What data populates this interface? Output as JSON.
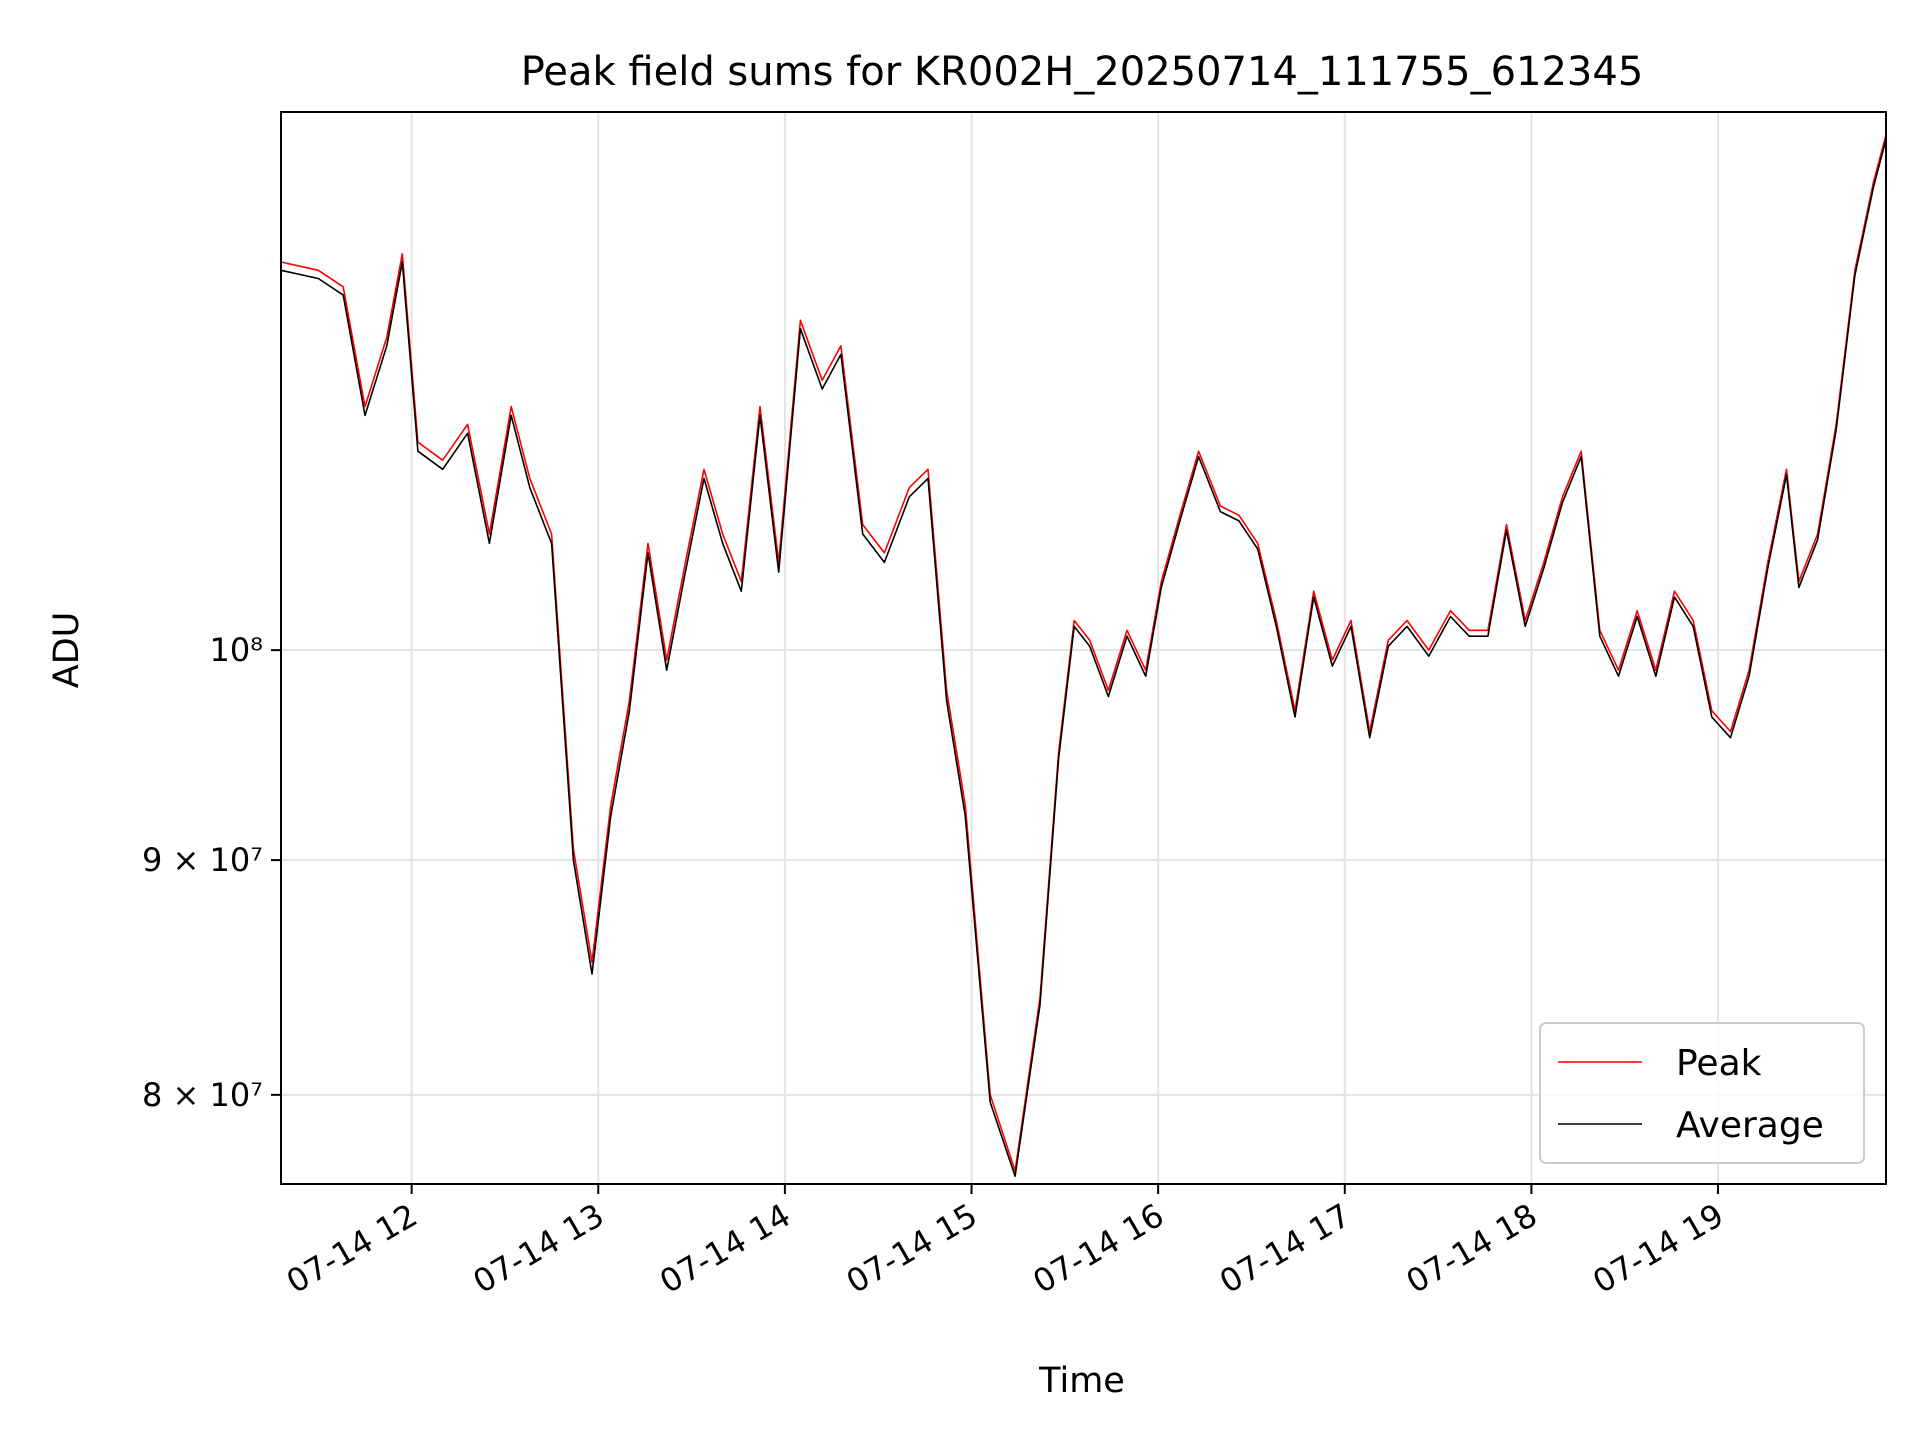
{
  "chart_data": {
    "type": "line",
    "title": "Peak field sums for KR002H_20250714_111755_612345",
    "xlabel": "Time",
    "ylabel": "ADU",
    "xlim": [
      "2025-07-14T11:18:00",
      "2025-07-14T19:54:00"
    ],
    "ylim": [
      76500000,
      131000000
    ],
    "yscale": "log",
    "x_ticks": [
      "07-14 12",
      "07-14 13",
      "07-14 14",
      "07-14 15",
      "07-14 16",
      "07-14 17",
      "07-14 18",
      "07-14 19"
    ],
    "y_ticks": [
      {
        "value": 80000000,
        "label": "8 × 10⁷"
      },
      {
        "value": 90000000,
        "label": "9 × 10⁷"
      },
      {
        "value": 100000000,
        "label": "10⁸"
      }
    ],
    "grid": true,
    "legend_position": "lower-right",
    "series": [
      {
        "name": "Peak",
        "color": "#ff0000",
        "points": [
          [
            "2025-07-14T11:18:00",
            121500000
          ],
          [
            "2025-07-14T11:30:00",
            121000000
          ],
          [
            "2025-07-14T11:38:00",
            120000000
          ],
          [
            "2025-07-14T11:45:00",
            113000000
          ],
          [
            "2025-07-14T11:52:00",
            117000000
          ],
          [
            "2025-07-14T11:57:00",
            122000000
          ],
          [
            "2025-07-14T12:02:00",
            111000000
          ],
          [
            "2025-07-14T12:10:00",
            110000000
          ],
          [
            "2025-07-14T12:18:00",
            112000000
          ],
          [
            "2025-07-14T12:25:00",
            106000000
          ],
          [
            "2025-07-14T12:32:00",
            113000000
          ],
          [
            "2025-07-14T12:38:00",
            109000000
          ],
          [
            "2025-07-14T12:45:00",
            106000000
          ],
          [
            "2025-07-14T12:52:00",
            90500000
          ],
          [
            "2025-07-14T12:58:00",
            85500000
          ],
          [
            "2025-07-14T13:04:00",
            92500000
          ],
          [
            "2025-07-14T13:10:00",
            97500000
          ],
          [
            "2025-07-14T13:16:00",
            105500000
          ],
          [
            "2025-07-14T13:22:00",
            99500000
          ],
          [
            "2025-07-14T13:28:00",
            104500000
          ],
          [
            "2025-07-14T13:34:00",
            109500000
          ],
          [
            "2025-07-14T13:40:00",
            106000000
          ],
          [
            "2025-07-14T13:46:00",
            103500000
          ],
          [
            "2025-07-14T13:52:00",
            113000000
          ],
          [
            "2025-07-14T13:58:00",
            104500000
          ],
          [
            "2025-07-14T14:05:00",
            118000000
          ],
          [
            "2025-07-14T14:12:00",
            114500000
          ],
          [
            "2025-07-14T14:18:00",
            116500000
          ],
          [
            "2025-07-14T14:25:00",
            106500000
          ],
          [
            "2025-07-14T14:32:00",
            105000000
          ],
          [
            "2025-07-14T14:40:00",
            108500000
          ],
          [
            "2025-07-14T14:46:00",
            109500000
          ],
          [
            "2025-07-14T14:52:00",
            98000000
          ],
          [
            "2025-07-14T14:58:00",
            92500000
          ],
          [
            "2025-07-14T15:06:00",
            80000000
          ],
          [
            "2025-07-14T15:14:00",
            77000000
          ],
          [
            "2025-07-14T15:22:00",
            84000000
          ],
          [
            "2025-07-14T15:28:00",
            95000000
          ],
          [
            "2025-07-14T15:33:00",
            101500000
          ],
          [
            "2025-07-14T15:38:00",
            100500000
          ],
          [
            "2025-07-14T15:44:00",
            98000000
          ],
          [
            "2025-07-14T15:50:00",
            101000000
          ],
          [
            "2025-07-14T15:56:00",
            99000000
          ],
          [
            "2025-07-14T16:01:00",
            103500000
          ],
          [
            "2025-07-14T16:07:00",
            107000000
          ],
          [
            "2025-07-14T16:13:00",
            110500000
          ],
          [
            "2025-07-14T16:20:00",
            107500000
          ],
          [
            "2025-07-14T16:26:00",
            107000000
          ],
          [
            "2025-07-14T16:32:00",
            105500000
          ],
          [
            "2025-07-14T16:38:00",
            101500000
          ],
          [
            "2025-07-14T16:44:00",
            97000000
          ],
          [
            "2025-07-14T16:50:00",
            103000000
          ],
          [
            "2025-07-14T16:56:00",
            99500000
          ],
          [
            "2025-07-14T17:02:00",
            101500000
          ],
          [
            "2025-07-14T17:08:00",
            96000000
          ],
          [
            "2025-07-14T17:14:00",
            100500000
          ],
          [
            "2025-07-14T17:20:00",
            101500000
          ],
          [
            "2025-07-14T17:27:00",
            100000000
          ],
          [
            "2025-07-14T17:34:00",
            102000000
          ],
          [
            "2025-07-14T17:40:00",
            101000000
          ],
          [
            "2025-07-14T17:46:00",
            101000000
          ],
          [
            "2025-07-14T17:52:00",
            106500000
          ],
          [
            "2025-07-14T17:58:00",
            101500000
          ],
          [
            "2025-07-14T18:04:00",
            104500000
          ],
          [
            "2025-07-14T18:10:00",
            108000000
          ],
          [
            "2025-07-14T18:16:00",
            110500000
          ],
          [
            "2025-07-14T18:22:00",
            101000000
          ],
          [
            "2025-07-14T18:28:00",
            99000000
          ],
          [
            "2025-07-14T18:34:00",
            102000000
          ],
          [
            "2025-07-14T18:40:00",
            99000000
          ],
          [
            "2025-07-14T18:46:00",
            103000000
          ],
          [
            "2025-07-14T18:52:00",
            101500000
          ],
          [
            "2025-07-14T18:58:00",
            97000000
          ],
          [
            "2025-07-14T19:04:00",
            96000000
          ],
          [
            "2025-07-14T19:10:00",
            99000000
          ],
          [
            "2025-07-14T19:16:00",
            104500000
          ],
          [
            "2025-07-14T19:22:00",
            109500000
          ],
          [
            "2025-07-14T19:26:00",
            103500000
          ],
          [
            "2025-07-14T19:32:00",
            106000000
          ],
          [
            "2025-07-14T19:38:00",
            112000000
          ],
          [
            "2025-07-14T19:44:00",
            121000000
          ],
          [
            "2025-07-14T19:50:00",
            126500000
          ],
          [
            "2025-07-14T19:54:00",
            129500000
          ]
        ]
      },
      {
        "name": "Average",
        "color": "#000000",
        "points": [
          [
            "2025-07-14T11:18:00",
            121000000
          ],
          [
            "2025-07-14T11:30:00",
            120500000
          ],
          [
            "2025-07-14T11:38:00",
            119500000
          ],
          [
            "2025-07-14T11:45:00",
            112500000
          ],
          [
            "2025-07-14T11:52:00",
            116500000
          ],
          [
            "2025-07-14T11:57:00",
            121500000
          ],
          [
            "2025-07-14T12:02:00",
            110500000
          ],
          [
            "2025-07-14T12:10:00",
            109500000
          ],
          [
            "2025-07-14T12:18:00",
            111500000
          ],
          [
            "2025-07-14T12:25:00",
            105500000
          ],
          [
            "2025-07-14T12:32:00",
            112500000
          ],
          [
            "2025-07-14T12:38:00",
            108500000
          ],
          [
            "2025-07-14T12:45:00",
            105500000
          ],
          [
            "2025-07-14T12:52:00",
            90000000
          ],
          [
            "2025-07-14T12:58:00",
            85000000
          ],
          [
            "2025-07-14T13:04:00",
            92000000
          ],
          [
            "2025-07-14T13:10:00",
            97000000
          ],
          [
            "2025-07-14T13:16:00",
            105000000
          ],
          [
            "2025-07-14T13:22:00",
            99000000
          ],
          [
            "2025-07-14T13:28:00",
            104000000
          ],
          [
            "2025-07-14T13:34:00",
            109000000
          ],
          [
            "2025-07-14T13:40:00",
            105500000
          ],
          [
            "2025-07-14T13:46:00",
            103000000
          ],
          [
            "2025-07-14T13:52:00",
            112500000
          ],
          [
            "2025-07-14T13:58:00",
            104000000
          ],
          [
            "2025-07-14T14:05:00",
            117500000
          ],
          [
            "2025-07-14T14:12:00",
            114000000
          ],
          [
            "2025-07-14T14:18:00",
            116000000
          ],
          [
            "2025-07-14T14:25:00",
            106000000
          ],
          [
            "2025-07-14T14:32:00",
            104500000
          ],
          [
            "2025-07-14T14:40:00",
            108000000
          ],
          [
            "2025-07-14T14:46:00",
            109000000
          ],
          [
            "2025-07-14T14:52:00",
            97500000
          ],
          [
            "2025-07-14T14:58:00",
            92000000
          ],
          [
            "2025-07-14T15:06:00",
            79700000
          ],
          [
            "2025-07-14T15:14:00",
            76800000
          ],
          [
            "2025-07-14T15:22:00",
            83700000
          ],
          [
            "2025-07-14T15:28:00",
            94700000
          ],
          [
            "2025-07-14T15:33:00",
            101200000
          ],
          [
            "2025-07-14T15:38:00",
            100200000
          ],
          [
            "2025-07-14T15:44:00",
            97700000
          ],
          [
            "2025-07-14T15:50:00",
            100700000
          ],
          [
            "2025-07-14T15:56:00",
            98700000
          ],
          [
            "2025-07-14T16:01:00",
            103200000
          ],
          [
            "2025-07-14T16:07:00",
            106700000
          ],
          [
            "2025-07-14T16:13:00",
            110200000
          ],
          [
            "2025-07-14T16:20:00",
            107200000
          ],
          [
            "2025-07-14T16:26:00",
            106700000
          ],
          [
            "2025-07-14T16:32:00",
            105200000
          ],
          [
            "2025-07-14T16:38:00",
            101200000
          ],
          [
            "2025-07-14T16:44:00",
            96700000
          ],
          [
            "2025-07-14T16:50:00",
            102700000
          ],
          [
            "2025-07-14T16:56:00",
            99200000
          ],
          [
            "2025-07-14T17:02:00",
            101200000
          ],
          [
            "2025-07-14T17:08:00",
            95700000
          ],
          [
            "2025-07-14T17:14:00",
            100200000
          ],
          [
            "2025-07-14T17:20:00",
            101200000
          ],
          [
            "2025-07-14T17:27:00",
            99700000
          ],
          [
            "2025-07-14T17:34:00",
            101700000
          ],
          [
            "2025-07-14T17:40:00",
            100700000
          ],
          [
            "2025-07-14T17:46:00",
            100700000
          ],
          [
            "2025-07-14T17:52:00",
            106200000
          ],
          [
            "2025-07-14T17:58:00",
            101200000
          ],
          [
            "2025-07-14T18:04:00",
            104200000
          ],
          [
            "2025-07-14T18:10:00",
            107700000
          ],
          [
            "2025-07-14T18:16:00",
            110200000
          ],
          [
            "2025-07-14T18:22:00",
            100700000
          ],
          [
            "2025-07-14T18:28:00",
            98700000
          ],
          [
            "2025-07-14T18:34:00",
            101700000
          ],
          [
            "2025-07-14T18:40:00",
            98700000
          ],
          [
            "2025-07-14T18:46:00",
            102700000
          ],
          [
            "2025-07-14T18:52:00",
            101200000
          ],
          [
            "2025-07-14T18:58:00",
            96700000
          ],
          [
            "2025-07-14T19:04:00",
            95700000
          ],
          [
            "2025-07-14T19:10:00",
            98700000
          ],
          [
            "2025-07-14T19:16:00",
            104200000
          ],
          [
            "2025-07-14T19:22:00",
            109200000
          ],
          [
            "2025-07-14T19:26:00",
            103200000
          ],
          [
            "2025-07-14T19:32:00",
            105700000
          ],
          [
            "2025-07-14T19:38:00",
            111700000
          ],
          [
            "2025-07-14T19:44:00",
            120700000
          ],
          [
            "2025-07-14T19:50:00",
            126200000
          ],
          [
            "2025-07-14T19:54:00",
            129200000
          ]
        ]
      }
    ]
  }
}
